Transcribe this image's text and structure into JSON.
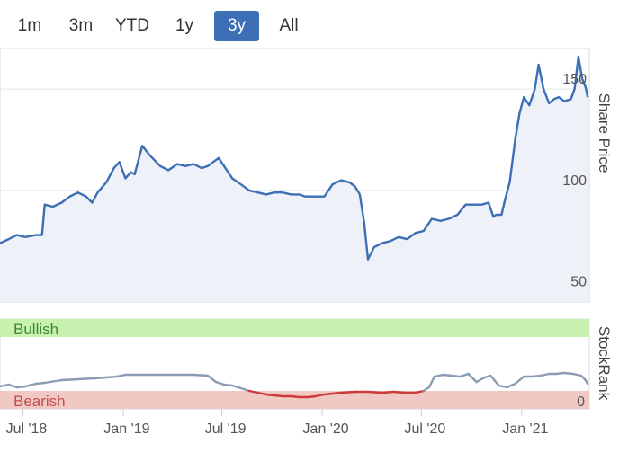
{
  "range_selector": {
    "buttons": [
      {
        "label": "1m",
        "active": false
      },
      {
        "label": "3m",
        "active": false
      },
      {
        "label": "YTD",
        "active": false
      },
      {
        "label": "1y",
        "active": false
      },
      {
        "label": "3y",
        "active": true
      },
      {
        "label": "All",
        "active": false
      }
    ],
    "active_color": "#3d6fb6"
  },
  "chart_data": [
    {
      "type": "line",
      "ylabel": "Share Price",
      "y_ticks": [
        50,
        100,
        150
      ],
      "ylim": [
        45,
        170
      ],
      "xlim": [
        "2018-05-20",
        "2021-05-05"
      ],
      "grid": true,
      "line_color": "#3d6fb6",
      "series": [
        {
          "x": [
            "2018-05-20",
            "2018-06-05",
            "2018-06-20",
            "2018-07-05",
            "2018-07-25",
            "2018-08-05",
            "2018-08-10",
            "2018-08-25",
            "2018-09-10",
            "2018-09-25",
            "2018-10-10",
            "2018-10-25",
            "2018-11-05",
            "2018-11-15",
            "2018-12-01",
            "2018-12-15",
            "2018-12-25",
            "2019-01-05",
            "2019-01-15",
            "2019-01-22",
            "2019-02-05",
            "2019-02-20",
            "2019-03-10",
            "2019-03-25",
            "2019-04-10",
            "2019-04-25",
            "2019-05-10",
            "2019-05-25",
            "2019-06-05",
            "2019-06-15",
            "2019-06-25",
            "2019-07-05",
            "2019-07-20",
            "2019-08-05",
            "2019-08-20",
            "2019-09-05",
            "2019-09-20",
            "2019-10-05",
            "2019-10-20",
            "2019-11-05",
            "2019-11-20",
            "2019-12-01",
            "2019-12-15",
            "2020-01-05",
            "2020-01-20",
            "2020-02-05",
            "2020-02-20",
            "2020-03-01",
            "2020-03-10",
            "2020-03-18",
            "2020-03-25",
            "2020-04-05",
            "2020-04-20",
            "2020-05-05",
            "2020-05-20",
            "2020-06-05",
            "2020-06-20",
            "2020-07-05",
            "2020-07-20",
            "2020-08-05",
            "2020-08-20",
            "2020-09-05",
            "2020-09-20",
            "2020-10-05",
            "2020-10-20",
            "2020-11-01",
            "2020-11-10",
            "2020-11-15",
            "2020-11-25",
            "2020-12-01",
            "2020-12-10",
            "2020-12-20",
            "2020-12-28",
            "2021-01-05",
            "2021-01-15",
            "2021-01-25",
            "2021-02-01",
            "2021-02-10",
            "2021-02-20",
            "2021-03-01",
            "2021-03-10",
            "2021-03-20",
            "2021-04-01",
            "2021-04-08",
            "2021-04-15",
            "2021-04-22",
            "2021-04-28",
            "2021-05-02"
          ],
          "y": [
            74,
            76,
            78,
            77,
            78,
            78,
            93,
            92,
            94,
            97,
            99,
            97,
            94,
            99,
            104,
            111,
            114,
            106,
            109,
            108,
            122,
            117,
            112,
            110,
            113,
            112,
            113,
            111,
            112,
            114,
            116,
            112,
            106,
            103,
            100,
            99,
            98,
            99,
            99,
            98,
            98,
            97,
            97,
            97,
            103,
            105,
            104,
            102,
            98,
            84,
            66,
            72,
            74,
            75,
            77,
            76,
            79,
            80,
            86,
            85,
            86,
            88,
            93,
            93,
            93,
            94,
            87,
            88,
            88,
            95,
            104,
            125,
            138,
            146,
            142,
            150,
            162,
            150,
            143,
            145,
            146,
            144,
            145,
            150,
            166,
            155,
            151,
            146
          ]
        }
      ]
    },
    {
      "type": "line",
      "ylabel": "StockRank",
      "y_ticks": [
        0
      ],
      "ylim": [
        0,
        100
      ],
      "xlim": [
        "2018-05-20",
        "2021-05-05"
      ],
      "bands": [
        {
          "label": "Bullish",
          "from": 80,
          "to": 100,
          "color": "#c8f0ae",
          "text_color": "#3c8a2e"
        },
        {
          "label": "Bearish",
          "from": 0,
          "to": 20,
          "color": "#f0c9c5",
          "text_color": "#c0504d"
        }
      ],
      "x_ticks": [
        "Jul '18",
        "Jan '19",
        "Jul '19",
        "Jan '20",
        "Jul '20",
        "Jan '21"
      ],
      "line_color": "#8a9bb3",
      "bearish_line_color": "#cc3a3a",
      "series": [
        {
          "x": [
            "2018-05-20",
            "2018-06-05",
            "2018-06-20",
            "2018-07-05",
            "2018-07-25",
            "2018-08-10",
            "2018-09-10",
            "2018-10-10",
            "2018-11-10",
            "2018-12-01",
            "2018-12-20",
            "2019-01-05",
            "2019-02-10",
            "2019-03-10",
            "2019-04-10",
            "2019-05-10",
            "2019-06-05",
            "2019-06-20",
            "2019-07-05",
            "2019-07-20",
            "2019-08-05",
            "2019-08-20",
            "2019-09-05",
            "2019-09-20",
            "2019-10-05",
            "2019-10-20",
            "2019-11-05",
            "2019-11-20",
            "2019-12-05",
            "2019-12-20",
            "2020-01-05",
            "2020-01-20",
            "2020-02-05",
            "2020-03-01",
            "2020-03-25",
            "2020-04-20",
            "2020-05-10",
            "2020-06-01",
            "2020-06-20",
            "2020-07-05",
            "2020-07-15",
            "2020-07-25",
            "2020-08-10",
            "2020-08-25",
            "2020-09-10",
            "2020-09-25",
            "2020-10-10",
            "2020-10-25",
            "2020-11-05",
            "2020-11-20",
            "2020-12-05",
            "2020-12-20",
            "2021-01-05",
            "2021-01-20",
            "2021-02-05",
            "2021-02-20",
            "2021-03-05",
            "2021-03-20",
            "2021-04-05",
            "2021-04-20",
            "2021-04-28",
            "2021-05-02"
          ],
          "y": [
            25,
            27,
            24,
            25,
            28,
            29,
            32,
            33,
            34,
            35,
            36,
            38,
            38,
            38,
            38,
            38,
            37,
            30,
            27,
            26,
            23,
            20,
            18,
            16,
            15,
            14,
            14,
            13,
            13,
            14,
            16,
            17,
            18,
            19,
            19,
            18,
            19,
            18,
            18,
            20,
            24,
            36,
            38,
            37,
            36,
            39,
            30,
            35,
            37,
            26,
            24,
            28,
            36,
            36,
            37,
            39,
            39,
            40,
            39,
            37,
            32,
            28
          ]
        }
      ]
    }
  ]
}
